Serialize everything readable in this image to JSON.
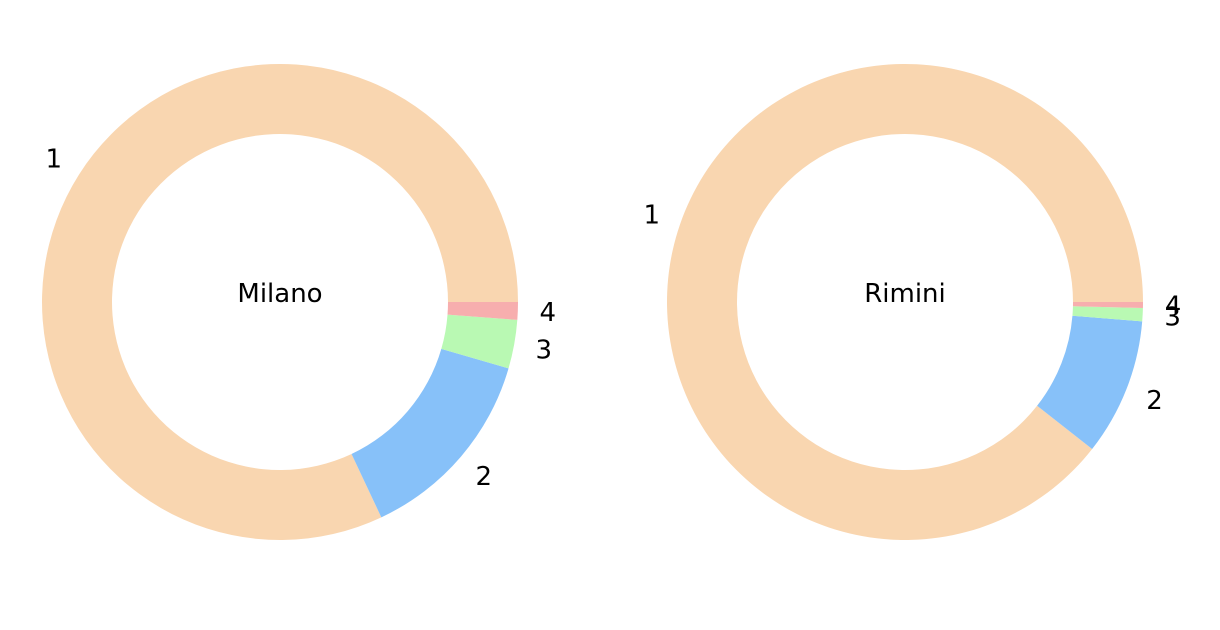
{
  "chart_data": [
    {
      "type": "pie",
      "style": "donut",
      "title": "Milano",
      "categories": [
        "1",
        "2",
        "3",
        "4"
      ],
      "values": [
        82,
        13.5,
        3.3,
        1.2
      ],
      "colors": [
        "#f9d6b0",
        "#87c1f9",
        "#b9f9b3",
        "#f7aeae"
      ]
    },
    {
      "type": "pie",
      "style": "donut",
      "title": "Rimini",
      "categories": [
        "1",
        "2",
        "3",
        "4"
      ],
      "values": [
        89.4,
        9.3,
        0.9,
        0.4
      ],
      "colors": [
        "#f9d6b0",
        "#87c1f9",
        "#b9f9b3",
        "#f7aeae"
      ]
    }
  ]
}
